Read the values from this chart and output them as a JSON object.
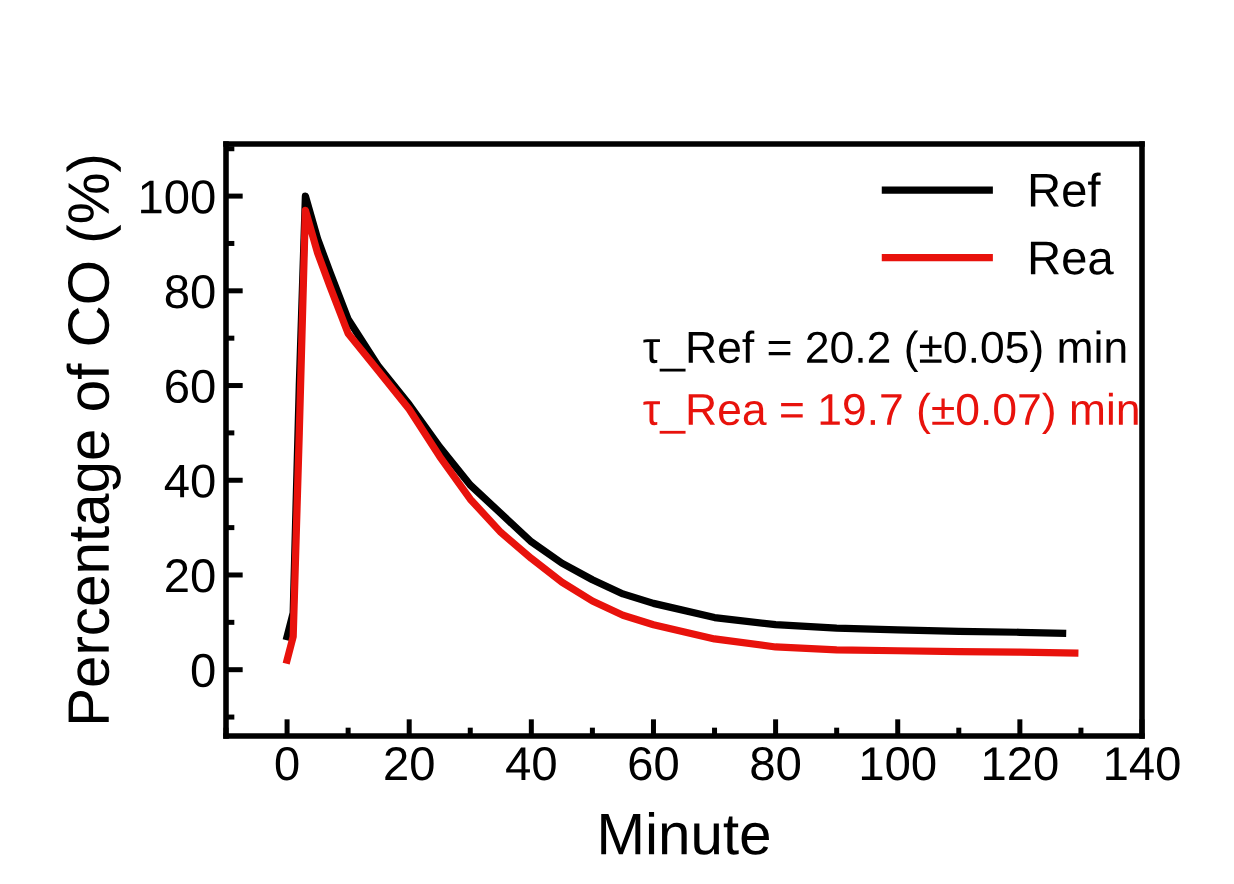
{
  "chart_data": {
    "type": "line",
    "xlabel": "Minute",
    "ylabel": "Percentage of CO (%)",
    "xlim": [
      -10,
      140
    ],
    "xticks": [
      0,
      20,
      40,
      60,
      80,
      100,
      120,
      140
    ],
    "ylim": [
      -14,
      111
    ],
    "yticks": [
      0,
      20,
      40,
      60,
      80,
      100
    ],
    "legend": "top right",
    "grid": false,
    "marker": "none",
    "line_style": "solid",
    "annotations": [
      "τ_Ref = 20.2 (±0.05) min",
      "τ_Rea = 19.7 (±0.07) min"
    ],
    "series": [
      {
        "name": "Ref",
        "color": "#000000",
        "x": [
          0,
          1,
          2,
          3,
          5,
          7,
          10,
          15,
          20,
          25,
          30,
          35,
          40,
          45,
          50,
          55,
          60,
          70,
          80,
          90,
          100,
          110,
          120,
          127
        ],
        "values": [
          7,
          12,
          60,
          100,
          91,
          84,
          74,
          64,
          56,
          47,
          39,
          33,
          27,
          22.5,
          19,
          16,
          14,
          11,
          9.5,
          8.8,
          8.4,
          8.1,
          7.9,
          7.7
        ]
      },
      {
        "name": "Rea",
        "color": "#e8120c",
        "x": [
          0,
          1,
          2,
          3,
          5,
          7,
          10,
          15,
          20,
          25,
          30,
          35,
          40,
          45,
          50,
          55,
          60,
          70,
          80,
          90,
          100,
          110,
          120,
          129
        ],
        "values": [
          2,
          7,
          50,
          97,
          88,
          81,
          71,
          63,
          55,
          45,
          36,
          29,
          23.5,
          18.5,
          14.5,
          11.5,
          9.5,
          6.5,
          4.8,
          4.2,
          4,
          3.8,
          3.7,
          3.5
        ]
      }
    ]
  }
}
